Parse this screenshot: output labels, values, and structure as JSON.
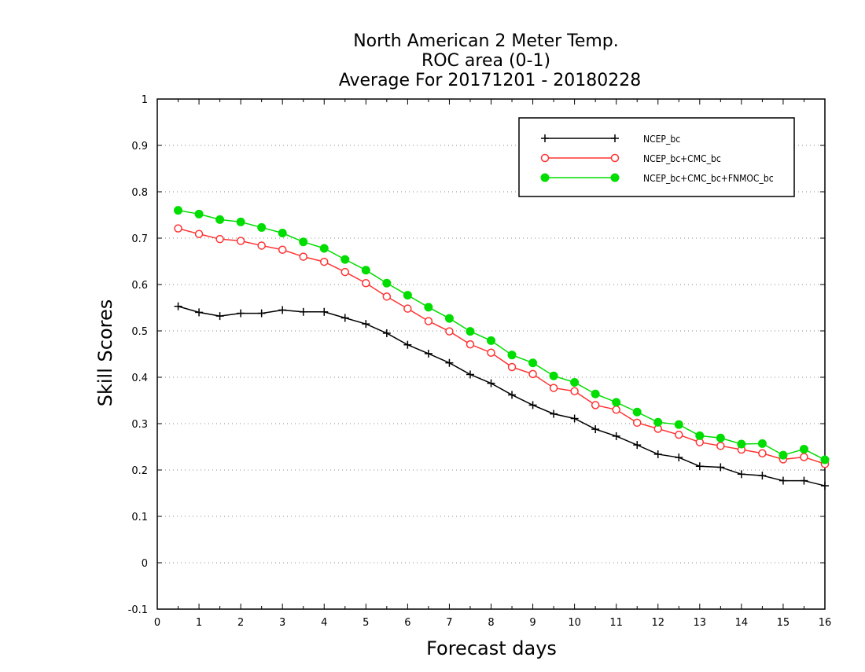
{
  "chart_data": {
    "type": "line",
    "title_lines": [
      "North American 2 Meter Temp.",
      "ROC area (0-1)",
      "Average For 20171201 - 20180228"
    ],
    "xlabel": "Forecast days",
    "ylabel": "Skill Scores",
    "xlim": [
      0,
      16
    ],
    "ylim": [
      -0.1,
      1
    ],
    "xticks": [
      0,
      1,
      2,
      3,
      4,
      5,
      6,
      7,
      8,
      9,
      10,
      11,
      12,
      13,
      14,
      15,
      16
    ],
    "yticks": [
      -0.1,
      0,
      0.1,
      0.2,
      0.3,
      0.4,
      0.5,
      0.6,
      0.7,
      0.8,
      0.9,
      1
    ],
    "ytick_labels": [
      "-0.1",
      "0",
      "0.1",
      "0.2",
      "0.3",
      "0.4",
      "0.5",
      "0.6",
      "0.7",
      "0.8",
      "0.9",
      "1"
    ],
    "grid": "horizontal dotted",
    "legend_position": "top-right",
    "x": [
      0.5,
      1,
      1.5,
      2,
      2.5,
      3,
      3.5,
      4,
      4.5,
      5,
      5.5,
      6,
      6.5,
      7,
      7.5,
      8,
      8.5,
      9,
      9.5,
      10,
      10.5,
      11,
      11.5,
      12,
      12.5,
      13,
      13.5,
      14,
      14.5,
      15,
      15.5,
      16
    ],
    "series": [
      {
        "name": "NCEP_bc",
        "color": "#000000",
        "marker": "plus",
        "values": [
          0.553,
          0.54,
          0.532,
          0.538,
          0.538,
          0.545,
          0.541,
          0.541,
          0.528,
          0.515,
          0.495,
          0.47,
          0.451,
          0.431,
          0.406,
          0.387,
          0.362,
          0.34,
          0.321,
          0.311,
          0.288,
          0.273,
          0.254,
          0.234,
          0.227,
          0.208,
          0.206,
          0.191,
          0.188,
          0.177,
          0.177,
          0.166
        ]
      },
      {
        "name": "NCEP_bc+CMC_bc",
        "color": "#ff3333",
        "marker": "open-circle",
        "values": [
          0.721,
          0.709,
          0.698,
          0.694,
          0.684,
          0.675,
          0.66,
          0.649,
          0.627,
          0.603,
          0.574,
          0.548,
          0.521,
          0.499,
          0.471,
          0.453,
          0.422,
          0.407,
          0.377,
          0.37,
          0.34,
          0.33,
          0.302,
          0.289,
          0.276,
          0.26,
          0.252,
          0.244,
          0.236,
          0.223,
          0.228,
          0.213
        ]
      },
      {
        "name": "NCEP_bc+CMC_bc+FNMOC_bc",
        "color": "#00dd00",
        "marker": "filled-circle",
        "values": [
          0.76,
          0.752,
          0.74,
          0.735,
          0.723,
          0.711,
          0.692,
          0.678,
          0.654,
          0.631,
          0.603,
          0.577,
          0.551,
          0.527,
          0.499,
          0.479,
          0.448,
          0.431,
          0.403,
          0.389,
          0.364,
          0.346,
          0.325,
          0.303,
          0.298,
          0.274,
          0.269,
          0.256,
          0.257,
          0.232,
          0.245,
          0.222
        ]
      }
    ]
  }
}
